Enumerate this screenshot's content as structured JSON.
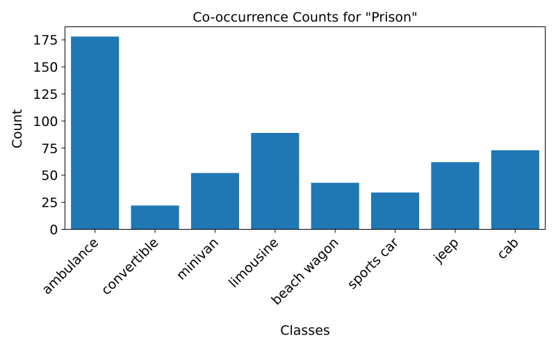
{
  "chart_data": {
    "type": "bar",
    "title": "Co-occurrence Counts for \"Prison\"",
    "xlabel": "Classes",
    "ylabel": "Count",
    "categories": [
      "ambulance",
      "convertible",
      "minivan",
      "limousine",
      "beach wagon",
      "sports car",
      "jeep",
      "cab"
    ],
    "values": [
      178,
      22,
      52,
      89,
      43,
      34,
      62,
      73
    ],
    "ylim": [
      0,
      187
    ],
    "yticks": [
      0,
      25,
      50,
      75,
      100,
      125,
      150,
      175
    ],
    "bar_color": "#1f77b4",
    "grid": false,
    "legend": "none"
  }
}
